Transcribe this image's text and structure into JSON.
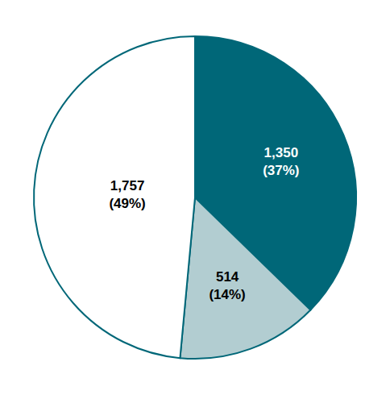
{
  "chart_data": {
    "type": "pie",
    "categories": [
      "1,350\n(37%)",
      "514\n(14%)",
      "1,757\n(49%)"
    ],
    "values": [
      1350,
      514,
      1757
    ],
    "value_labels": [
      "1,350\n(37%)",
      "514\n(14%)",
      "1,757\n(49%)"
    ],
    "colors": [
      "#006778",
      "#b2cdd1",
      "#ffffff"
    ],
    "data_labels": true
  }
}
